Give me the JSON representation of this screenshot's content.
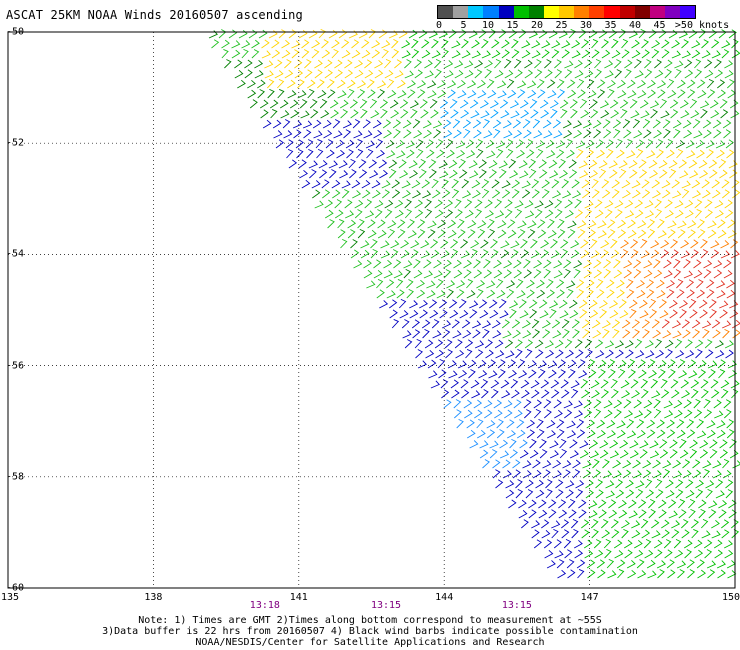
{
  "title": "ASCAT 25KM NOAA Winds 20160507 ascending",
  "colorbar": {
    "colors": [
      "#505050",
      "#a0a0a0",
      "#00c8ff",
      "#0080ff",
      "#0000c0",
      "#00c000",
      "#008000",
      "#ffff00",
      "#ffc800",
      "#ff8000",
      "#ff4000",
      "#ff0000",
      "#c00000",
      "#800000",
      "#c00080",
      "#8000c0",
      "#4000ff"
    ],
    "labels": [
      "0",
      "5",
      "10",
      "15",
      "20",
      "25",
      "30",
      "35",
      "40",
      "45",
      ">50 knots"
    ]
  },
  "map": {
    "lat_labels": [
      "-50",
      "-52",
      "-54",
      "-56",
      "-58",
      "-60"
    ],
    "lon_labels": [
      "135",
      "138",
      "141",
      "144",
      "147",
      "150"
    ],
    "lat_values": [
      -50,
      -52,
      -54,
      -56,
      -58,
      -60
    ],
    "lon_values": [
      135,
      138,
      141,
      144,
      147,
      150
    ],
    "lat_range": [
      -60,
      -50
    ],
    "lon_range": [
      135,
      150
    ],
    "grid": "dotted",
    "time_labels": [
      {
        "text": "13:18",
        "lon": 140.3
      },
      {
        "text": "13:15",
        "lon": 142.8
      },
      {
        "text": "13:15",
        "lon": 145.5
      }
    ]
  },
  "notes": {
    "line1": "Note: 1) Times are GMT 2)Times along bottom correspond to measurement at ~55S",
    "line2": "3)Data buffer is 22 hrs from 20160507 4) Black wind barbs indicate possible contamination",
    "line3": "NOAA/NESDIS/Center for Satellite Applications and Research"
  }
}
